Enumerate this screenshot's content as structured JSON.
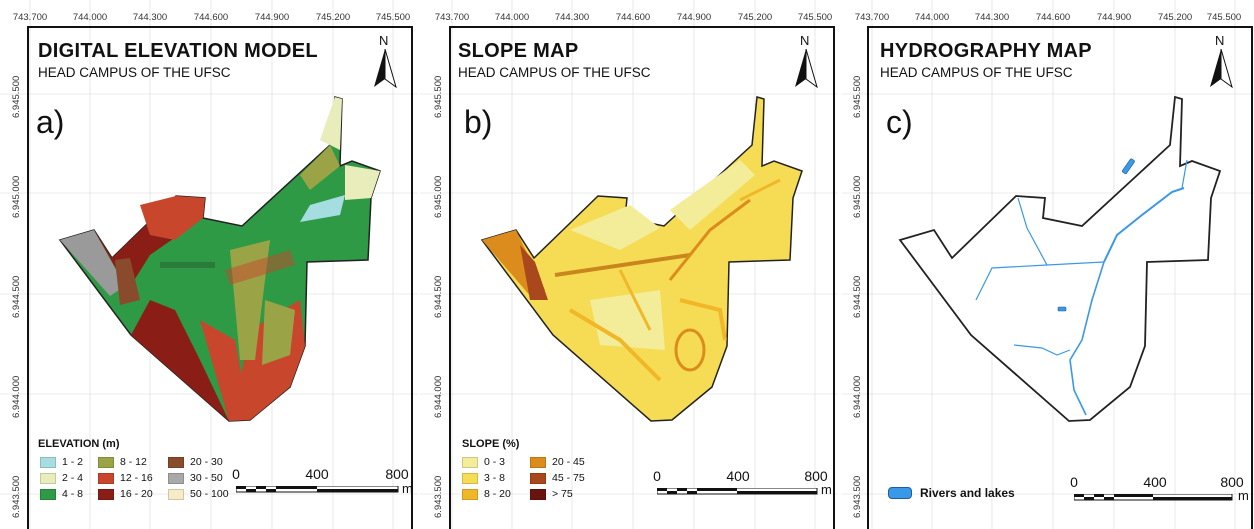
{
  "x_ticks": [
    "743.700",
    "744.000",
    "744.300",
    "744.600",
    "744.900",
    "745.200",
    "745.500"
  ],
  "y_ticks": [
    "6.945.500",
    "6.945.000",
    "6.944.500",
    "6.944.000",
    "6.943.500"
  ],
  "north_label": "N",
  "panels": [
    {
      "letter": "a)",
      "title": "DIGITAL ELEVATION MODEL",
      "subtitle": "HEAD CAMPUS OF THE UFSC",
      "legend_title": "ELEVATION (m)",
      "legend": [
        {
          "label": "1 - 2",
          "color": "#a6dde0"
        },
        {
          "label": "2 - 4",
          "color": "#e8edbb"
        },
        {
          "label": "4 - 8",
          "color": "#2f9a45"
        },
        {
          "label": "8 - 12",
          "color": "#9aa446"
        },
        {
          "label": "12 - 16",
          "color": "#c8462c"
        },
        {
          "label": "16 - 20",
          "color": "#8a1e16"
        },
        {
          "label": "20 - 30",
          "color": "#8a4a2c"
        },
        {
          "label": "30 - 50",
          "color": "#a9a9a9"
        },
        {
          "label": "50 - 100",
          "color": "#f6ecc8"
        }
      ]
    },
    {
      "letter": "b)",
      "title": "SLOPE MAP",
      "subtitle": "HEAD CAMPUS OF THE UFSC",
      "legend_title": "SLOPE (%)",
      "legend": [
        {
          "label": "0 - 3",
          "color": "#f3ec98"
        },
        {
          "label": "3 - 8",
          "color": "#f6dc55"
        },
        {
          "label": "8 - 20",
          "color": "#f0b828"
        },
        {
          "label": "20 - 45",
          "color": "#dc8c1c"
        },
        {
          "label": "45 - 75",
          "color": "#a8481c"
        },
        {
          "label": "> 75",
          "color": "#6a1410"
        }
      ]
    },
    {
      "letter": "c)",
      "title": "HYDROGRAPHY MAP",
      "subtitle": "HEAD CAMPUS OF THE UFSC",
      "legend": [
        {
          "label": "Rivers and lakes",
          "color": "#3a98e8"
        }
      ]
    }
  ],
  "scale_bar": {
    "labels": [
      "0",
      "400",
      "800"
    ],
    "unit": "m"
  }
}
